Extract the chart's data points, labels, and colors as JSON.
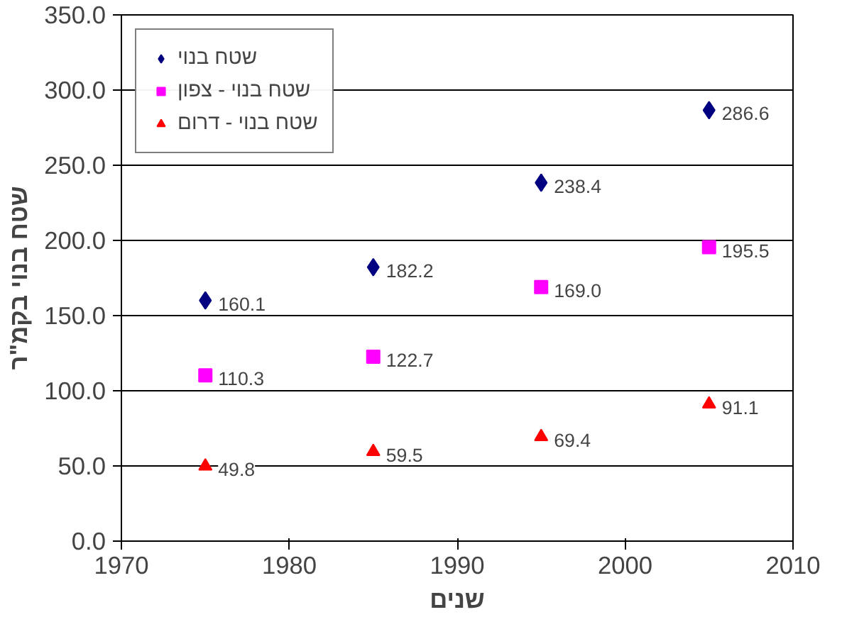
{
  "chart_data": {
    "type": "scatter",
    "xlabel": "שנים",
    "ylabel": "שטח בנוי בקמ\"ר",
    "x": [
      1975,
      1985,
      1995,
      2005
    ],
    "series": [
      {
        "name": "שטח בנוי",
        "color": "#000080",
        "marker": "diamond",
        "values": [
          160.1,
          182.2,
          238.4,
          286.6
        ],
        "value_labels": [
          "160.1",
          "182.2",
          "238.4",
          "286.6"
        ]
      },
      {
        "name": "שטח בנוי - צפון",
        "color": "#ff00ff",
        "marker": "square",
        "values": [
          110.3,
          122.7,
          169.0,
          195.5
        ],
        "value_labels": [
          "110.3",
          "122.7",
          "169.0",
          "195.5"
        ]
      },
      {
        "name": "שטח בנוי - דרום",
        "color": "#ff0000",
        "marker": "triangle",
        "values": [
          49.8,
          59.5,
          69.4,
          91.1
        ],
        "value_labels": [
          "49.8",
          "59.5",
          "69.4",
          "91.1"
        ]
      }
    ],
    "xlim": [
      1970,
      2010
    ],
    "xticks": [
      1970,
      1980,
      1990,
      2000,
      2010
    ],
    "ylim": [
      0,
      350
    ],
    "yticks": [
      {
        "value": 0,
        "label": "0.0"
      },
      {
        "value": 50,
        "label": "50.0"
      },
      {
        "value": 100,
        "label": "100.0"
      },
      {
        "value": 150,
        "label": "150.0"
      },
      {
        "value": 200,
        "label": "200.0"
      },
      {
        "value": 250,
        "label": "250.0"
      },
      {
        "value": 300,
        "label": "300.0"
      },
      {
        "value": 350,
        "label": "350.0"
      }
    ],
    "grid": "y",
    "legend": "top left"
  }
}
